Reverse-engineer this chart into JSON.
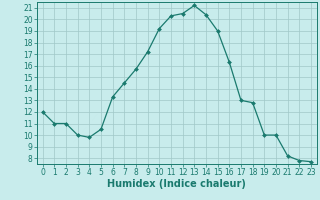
{
  "title": "",
  "xlabel": "Humidex (Indice chaleur)",
  "x": [
    0,
    1,
    2,
    3,
    4,
    5,
    6,
    7,
    8,
    9,
    10,
    11,
    12,
    13,
    14,
    15,
    16,
    17,
    18,
    19,
    20,
    21,
    22,
    23
  ],
  "y": [
    12,
    11,
    11,
    10,
    9.8,
    10.5,
    13.3,
    14.5,
    15.7,
    17.2,
    19.2,
    20.3,
    20.5,
    21.2,
    20.4,
    19.0,
    16.3,
    13.0,
    12.8,
    10.0,
    10.0,
    8.2,
    7.8,
    7.7
  ],
  "line_color": "#1a7a6e",
  "marker": "D",
  "marker_size": 2.0,
  "bg_color": "#c8ecec",
  "grid_color": "#a0c8c8",
  "ylim": [
    7.5,
    21.5
  ],
  "xlim": [
    -0.5,
    23.5
  ],
  "yticks": [
    8,
    9,
    10,
    11,
    12,
    13,
    14,
    15,
    16,
    17,
    18,
    19,
    20,
    21
  ],
  "xticks": [
    0,
    1,
    2,
    3,
    4,
    5,
    6,
    7,
    8,
    9,
    10,
    11,
    12,
    13,
    14,
    15,
    16,
    17,
    18,
    19,
    20,
    21,
    22,
    23
  ],
  "tick_fontsize": 5.5,
  "xlabel_fontsize": 7
}
